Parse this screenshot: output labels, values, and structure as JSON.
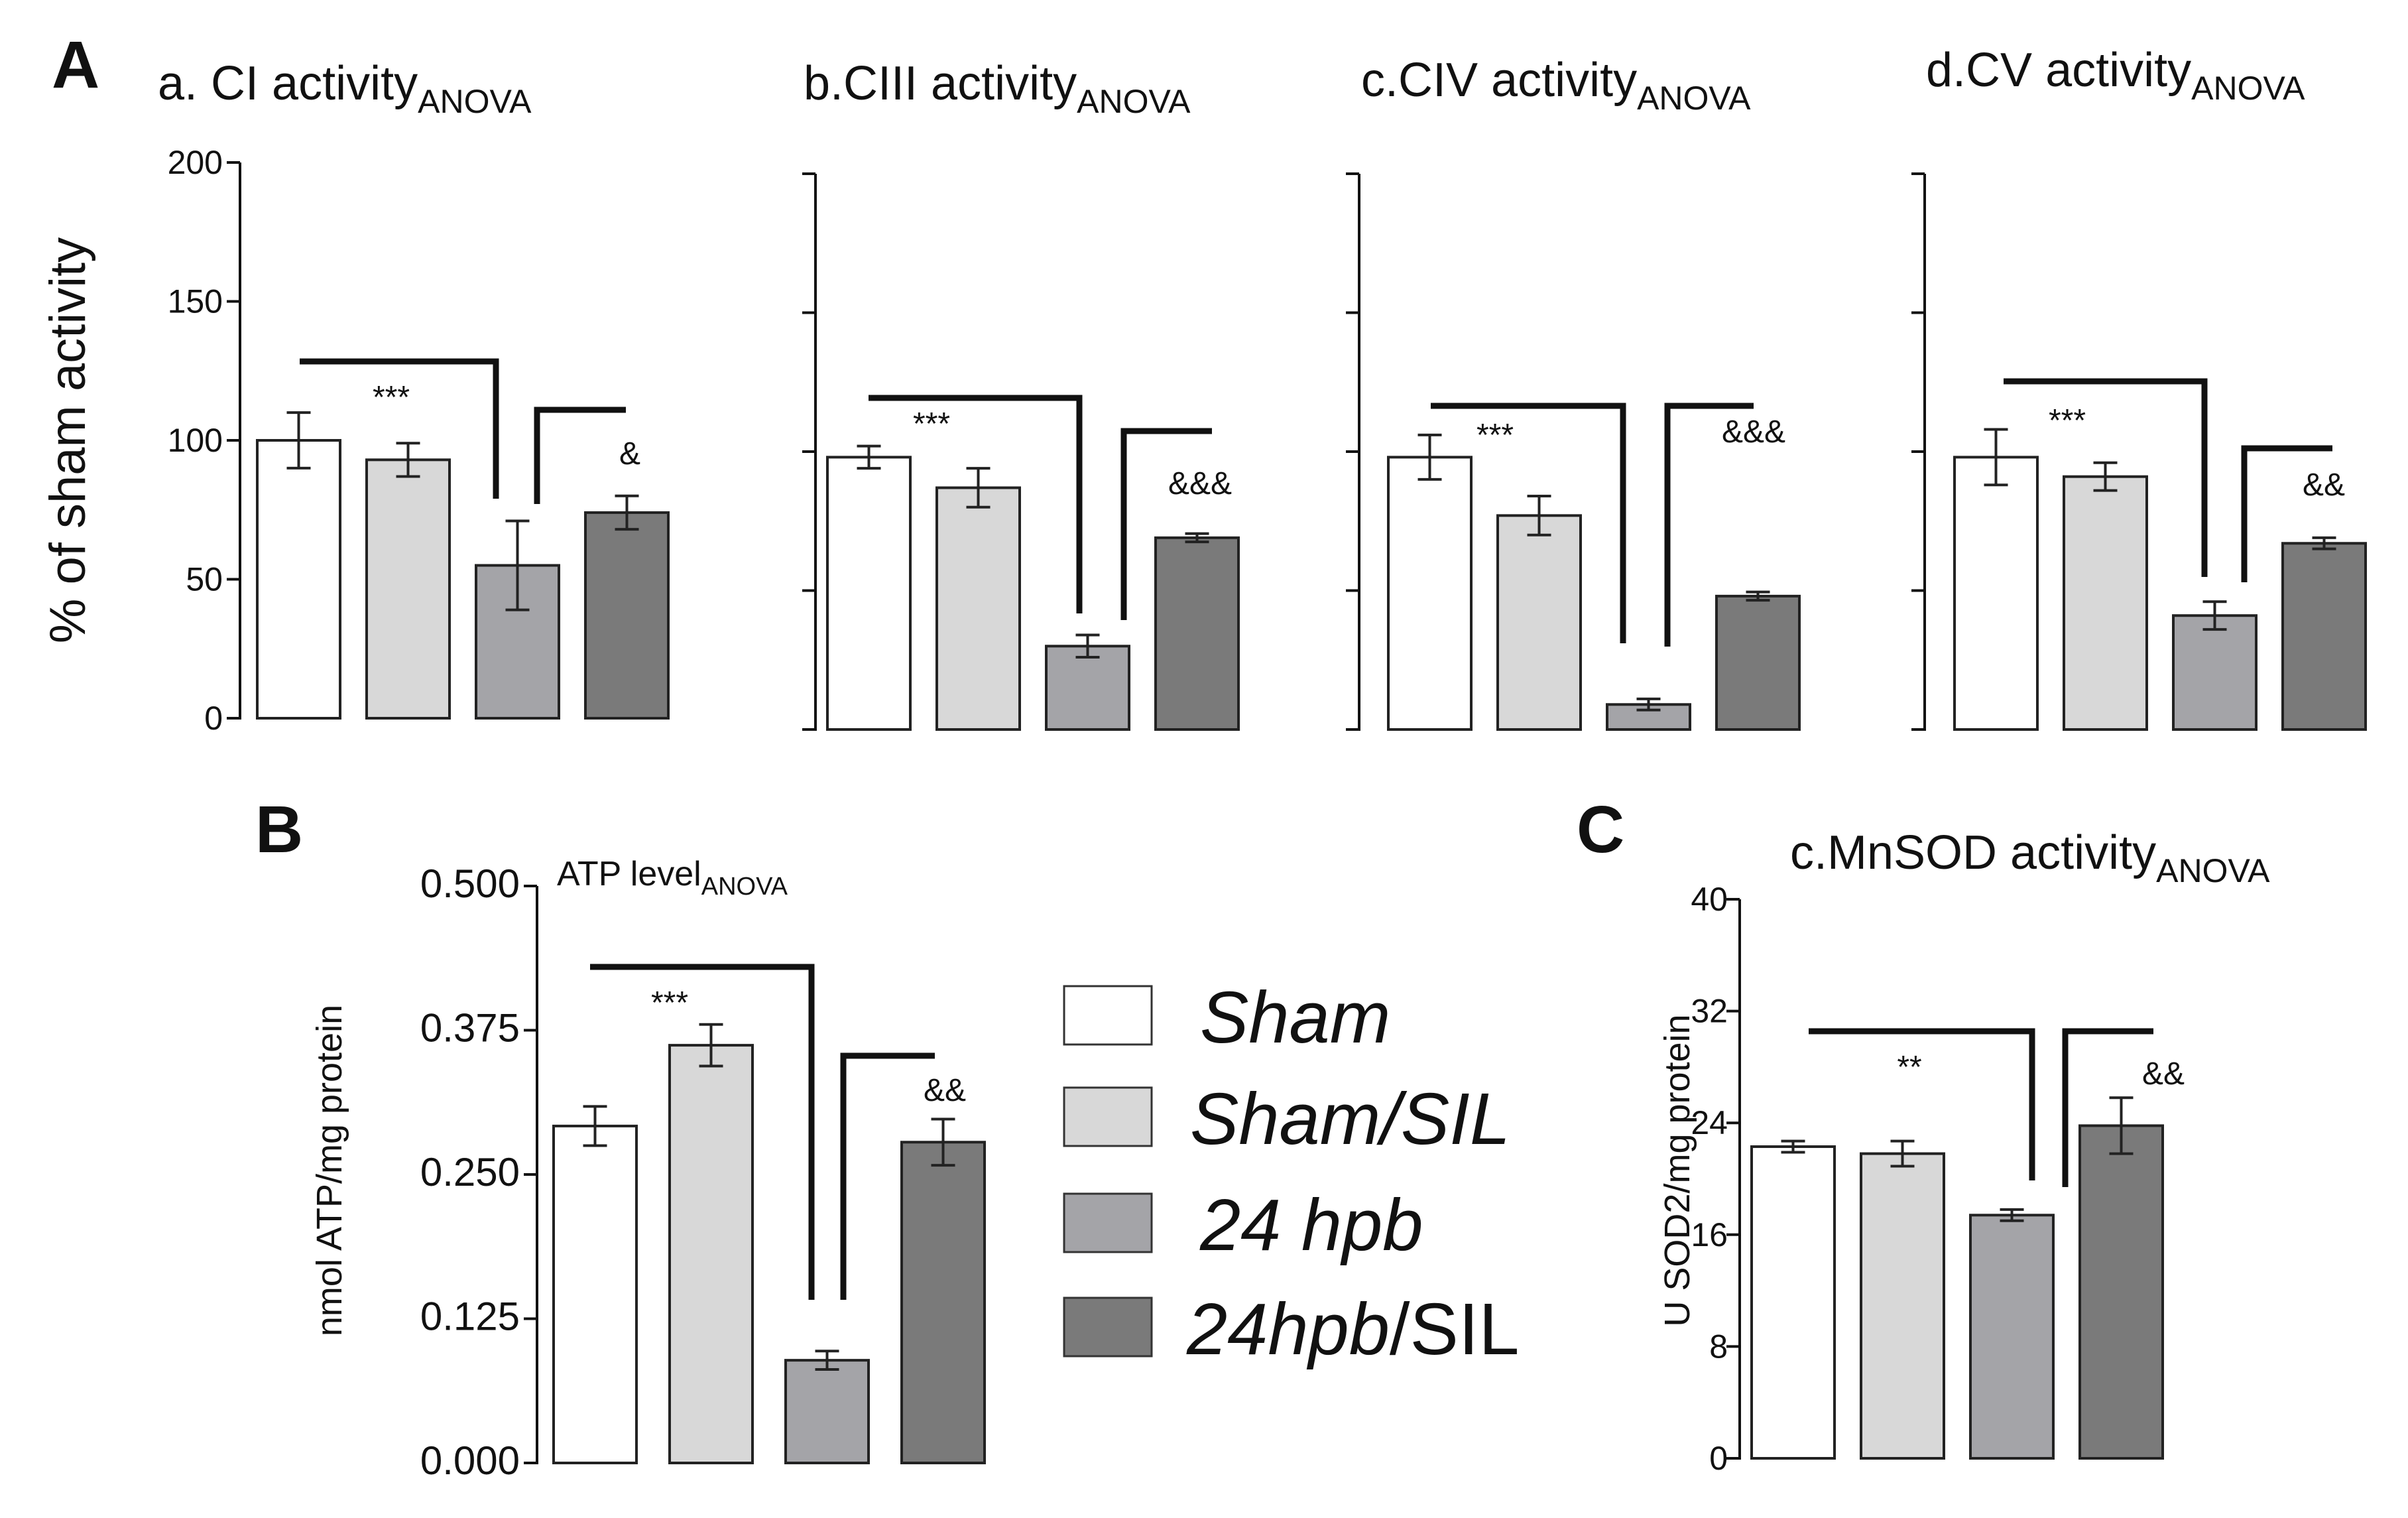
{
  "panels": {
    "A": "A",
    "B": "B",
    "C": "C"
  },
  "colors": {
    "sham": "#ffffff",
    "sham_sil": "#d8d8d8",
    "hpb24": "#a4a4a8",
    "hpb24_sil": "#7a7a7a",
    "axis": "#111111"
  },
  "legend": [
    {
      "label": "Sham",
      "color_key": "sham"
    },
    {
      "label": "Sham/SIL",
      "color_key": "sham_sil"
    },
    {
      "label": " 24 hpb",
      "color_key": "hpb24"
    },
    {
      "label_italic": "24hpb",
      "label_plain": "/SIL",
      "color_key": "hpb24_sil"
    }
  ],
  "chart_data": [
    {
      "type": "bar",
      "panel": "A",
      "title": "a. CI activity",
      "title_sub": "ANOVA",
      "ylabel": "% of sham activity",
      "ylim": [
        0,
        200
      ],
      "yticks": [
        "0",
        "50",
        "100",
        "150",
        "200"
      ],
      "categories": [
        "Sham",
        "Sham/SIL",
        "24 hpb",
        "24hpb/SIL"
      ],
      "values": [
        100,
        93,
        55,
        74
      ],
      "errors": [
        10,
        6,
        16,
        6
      ],
      "annotations": [
        {
          "text": "***",
          "pos": "between first and third bars"
        },
        {
          "text": "&",
          "pos": "above fourth bar"
        }
      ]
    },
    {
      "type": "bar",
      "panel": "A",
      "title": "b.CIII  activity",
      "title_sub": "ANOVA",
      "ylim": [
        0,
        200
      ],
      "categories": [
        "Sham",
        "Sham/SIL",
        "24 hpb",
        "24hpb/SIL"
      ],
      "values": [
        98,
        87,
        30,
        69
      ],
      "errors": [
        4,
        7,
        4,
        1.5
      ],
      "annotations": [
        {
          "text": "***"
        },
        {
          "text": "&&&"
        }
      ]
    },
    {
      "type": "bar",
      "panel": "A",
      "title": "c.CIV activity",
      "title_sub": "ANOVA",
      "ylim": [
        0,
        200
      ],
      "categories": [
        "Sham",
        "Sham/SIL",
        "24 hpb",
        "24hpb/SIL"
      ],
      "values": [
        98,
        77,
        9,
        48
      ],
      "errors": [
        8,
        7,
        2,
        1.5
      ],
      "annotations": [
        {
          "text": "***"
        },
        {
          "text": "&&&"
        }
      ]
    },
    {
      "type": "bar",
      "panel": "A",
      "title": "d.CV activity",
      "title_sub": "ANOVA",
      "ylim": [
        0,
        200
      ],
      "categories": [
        "Sham",
        "Sham/SIL",
        "24 hpb",
        "24hpb/SIL"
      ],
      "values": [
        98,
        91,
        41,
        67
      ],
      "errors": [
        10,
        5,
        5,
        2
      ],
      "annotations": [
        {
          "text": "***"
        },
        {
          "text": "&&"
        }
      ]
    },
    {
      "type": "bar",
      "panel": "B",
      "title": "ATP level",
      "title_sub": "ANOVA",
      "ylabel": "nmol ATP/mg protein",
      "ylim": [
        0,
        0.5
      ],
      "yticks": [
        "0.000",
        "0.125",
        "0.250",
        "0.375",
        "0.500"
      ],
      "categories": [
        "Sham",
        "Sham/SIL",
        "24 hpb",
        "24hpb/SIL"
      ],
      "values": [
        0.292,
        0.362,
        0.089,
        0.278
      ],
      "errors": [
        0.017,
        0.018,
        0.008,
        0.02
      ],
      "annotations": [
        {
          "text": "***"
        },
        {
          "text": "&&"
        }
      ]
    },
    {
      "type": "bar",
      "panel": "C",
      "title": "c.MnSOD activity",
      "title_sub": "ANOVA",
      "ylabel": "U SOD2/mg protein",
      "ylim": [
        0,
        40
      ],
      "yticks": [
        "0",
        "8",
        "16",
        "24",
        "32",
        "40"
      ],
      "categories": [
        "Sham",
        "Sham/SIL",
        "24 hpb",
        "24hpb/SIL"
      ],
      "values": [
        22.3,
        21.8,
        17.4,
        23.8
      ],
      "errors": [
        0.4,
        0.9,
        0.4,
        2.0
      ],
      "annotations": [
        {
          "text": "**"
        },
        {
          "text": "&&"
        }
      ]
    }
  ]
}
